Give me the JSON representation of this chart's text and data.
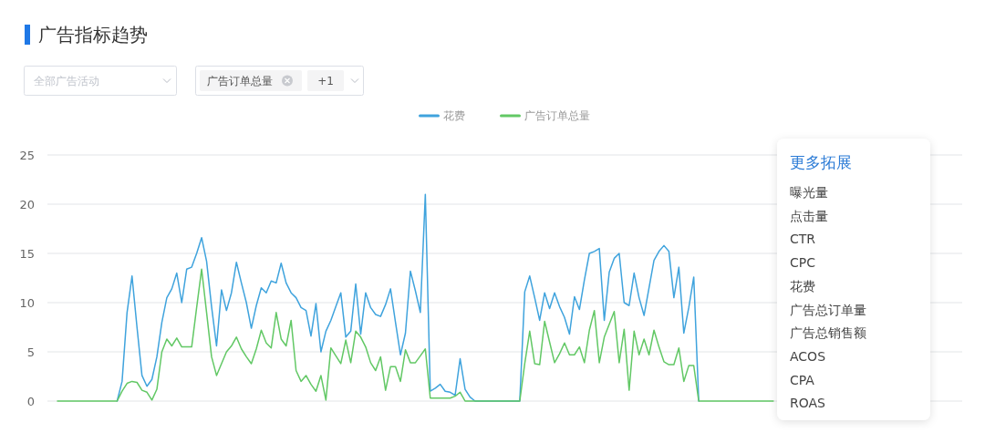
{
  "chart_data": {
    "type": "line",
    "title": "广告指标趋势",
    "categories": [
      null,
      null,
      null,
      null,
      null,
      null,
      null,
      null,
      null,
      null,
      null,
      null,
      null,
      null,
      null,
      null,
      null,
      null,
      null,
      null,
      null,
      null,
      null,
      null,
      null,
      null,
      null,
      null,
      null,
      null,
      null,
      null,
      null,
      null,
      null,
      null,
      null,
      null,
      null,
      null,
      null,
      null,
      null,
      null,
      null,
      null,
      null,
      null,
      null,
      null,
      null,
      null,
      null,
      null,
      null,
      null,
      null,
      null,
      null,
      null,
      null,
      null,
      null,
      null,
      null,
      null,
      null,
      null,
      null,
      null,
      null,
      null,
      null,
      null,
      null,
      null,
      null,
      null,
      null,
      null,
      null,
      null,
      null,
      null,
      null,
      null,
      null,
      null,
      null,
      null,
      null,
      null,
      null,
      null,
      null,
      null,
      null,
      null,
      null,
      null,
      null,
      null,
      null,
      null,
      null,
      null,
      null,
      null,
      null,
      null,
      null,
      null,
      null,
      null,
      null,
      null,
      null,
      null,
      null,
      null,
      null,
      null,
      null,
      null,
      null,
      null,
      null,
      null,
      null,
      null,
      null,
      null,
      null,
      null,
      null,
      null,
      null,
      null,
      null,
      null,
      null,
      null,
      null,
      null,
      null,
      null,
      null,
      null,
      null,
      null,
      null,
      null,
      null,
      null,
      null,
      null,
      null,
      null,
      null,
      null,
      null,
      null,
      null,
      null,
      null,
      null,
      null,
      null,
      null,
      null,
      null,
      null,
      null,
      null,
      null,
      null,
      null,
      null,
      null,
      null,
      null,
      null,
      null
    ],
    "series": [
      {
        "name": "花费",
        "color": "#3fa3dd",
        "values": [
          null,
          null,
          null,
          null,
          null,
          null,
          null,
          null,
          null,
          null,
          null,
          null,
          0,
          2,
          9,
          12.7,
          7.5,
          2.6,
          1.5,
          2.2,
          4.5,
          8,
          10.5,
          11.4,
          13,
          10,
          13.4,
          13.6,
          15,
          16.6,
          14.2,
          9.6,
          5.6,
          11.3,
          9.2,
          11,
          14.1,
          12,
          10,
          7.4,
          9.7,
          11.5,
          11,
          12.2,
          12,
          14,
          12,
          11,
          10.5,
          9.5,
          9.2,
          6.6,
          9.9,
          5,
          7.1,
          8.2,
          9.6,
          11,
          6.5,
          7.1,
          11.9,
          6.8,
          11,
          9.5,
          8.8,
          8.6,
          9.8,
          11.4,
          8,
          4.7,
          6.9,
          13.2,
          11.2,
          9,
          21,
          1,
          1.3,
          1.7,
          1,
          0.9,
          0.6,
          4.3,
          1.2,
          0.4,
          0,
          0,
          0,
          0,
          0,
          0,
          0,
          0,
          0,
          0,
          11.1,
          12.7,
          10.5,
          8.2,
          11,
          9.4,
          11,
          9.6,
          8.5,
          6.8,
          10.6,
          9.3,
          12.3,
          15,
          15.2,
          15.5,
          8.2,
          13.1,
          14.5,
          15,
          10,
          9.7,
          13,
          10.5,
          8.7,
          11.5,
          14.3,
          15.2,
          15.8,
          15.2,
          10.5,
          13.6,
          6.9,
          9.5,
          12.6,
          0,
          null,
          null,
          null,
          null,
          null,
          null,
          null,
          null,
          null,
          null,
          null,
          null,
          null,
          null,
          null,
          null,
          null,
          null,
          null,
          null,
          null,
          null,
          null,
          null,
          null,
          null,
          null,
          null,
          null,
          null,
          null,
          null,
          null,
          null,
          null,
          null,
          null,
          null,
          null,
          null,
          null,
          null,
          null,
          null,
          null,
          null,
          null,
          null,
          null,
          null,
          null,
          null,
          null
        ]
      },
      {
        "name": "广告订单总量",
        "color": "#62c865",
        "values": [
          0,
          0,
          0,
          0,
          0,
          0,
          0,
          0,
          0,
          0,
          0,
          0,
          0,
          1,
          1.8,
          2,
          1.9,
          1.1,
          0.9,
          0.1,
          1.2,
          5,
          6.3,
          5.6,
          6.4,
          5.5,
          5.5,
          5.5,
          9.5,
          13.4,
          9,
          4.5,
          2.6,
          3.8,
          5,
          5.6,
          6.5,
          5.3,
          4.5,
          3.8,
          5.3,
          7.2,
          5.9,
          5.4,
          9,
          6.3,
          5.6,
          8.2,
          3.1,
          2,
          2.6,
          1.7,
          1,
          2.6,
          0.1,
          5.4,
          4.6,
          3.8,
          6.2,
          3.9,
          7.1,
          6.5,
          5.5,
          3.9,
          3.1,
          4.5,
          1.1,
          3.5,
          3.5,
          2,
          5.2,
          3.9,
          3.9,
          4.6,
          5.3,
          0.3,
          0.3,
          0.3,
          0.3,
          0.3,
          0.5,
          0.9,
          0,
          0,
          0,
          0,
          0,
          0,
          0,
          0,
          0,
          0,
          0,
          0,
          3.8,
          7.1,
          3.8,
          3.7,
          8.1,
          6,
          3.9,
          4.8,
          5.9,
          4.7,
          4.7,
          5.5,
          3.9,
          7.2,
          9.2,
          3.9,
          6.5,
          7.8,
          9.1,
          3.9,
          7.3,
          1.1,
          7.1,
          4.7,
          6.3,
          4.7,
          7.2,
          5.5,
          4,
          3.7,
          3.7,
          5.4,
          2,
          3.6,
          3.6,
          0,
          0,
          0,
          0,
          0,
          0,
          0,
          0,
          0,
          0,
          0,
          0,
          0,
          0,
          0,
          0,
          null,
          null,
          null,
          null,
          null,
          null,
          null,
          null,
          null,
          null,
          null,
          null,
          null,
          null,
          null,
          null,
          null,
          null,
          null,
          null,
          null,
          null,
          null,
          null,
          null,
          null,
          null,
          null,
          null,
          null,
          null,
          null,
          null,
          null,
          null,
          null,
          null,
          null
        ]
      }
    ],
    "ylim": [
      0,
      25
    ],
    "yticks": [
      0,
      5,
      10,
      15,
      20,
      25
    ],
    "grid": "y",
    "legend": "top",
    "tick_labels": "y",
    "annotations": [
      "全部广告活动",
      "广告订单总量",
      "+1",
      "更多拓展",
      "曝光量",
      "点击量",
      "CTR",
      "CPC",
      "花费",
      "广告总订单量",
      "广告总销售额",
      "ACOS",
      "CPA",
      "ROAS"
    ]
  }
}
